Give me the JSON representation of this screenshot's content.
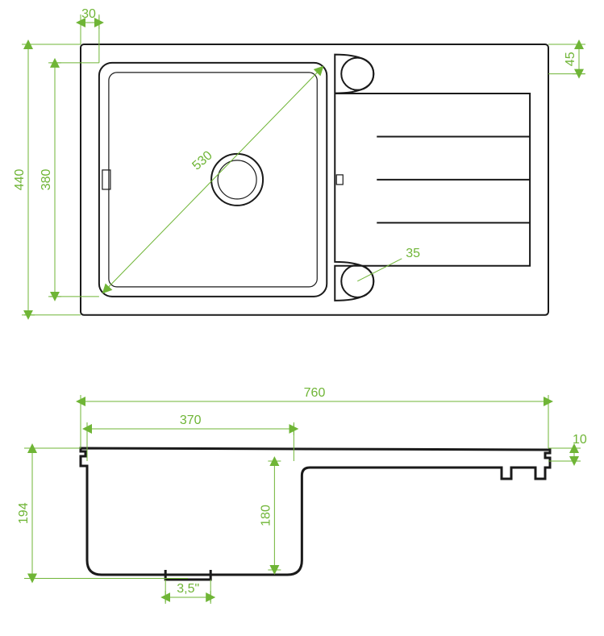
{
  "colors": {
    "dim": "#6fb536",
    "outline": "#1a1a1a",
    "bg": "#ffffff"
  },
  "dims": {
    "width_total": "760",
    "height_total": "440",
    "inner_height": "380",
    "inner_width": "370",
    "diagonal": "530",
    "top_offset": "30",
    "right_offset": "45",
    "hole_dia": "35",
    "depth_total": "194",
    "depth_bowl": "180",
    "rim_thickness": "10",
    "drain": "3,5\""
  },
  "arrow_size": 6,
  "font_size": 16
}
